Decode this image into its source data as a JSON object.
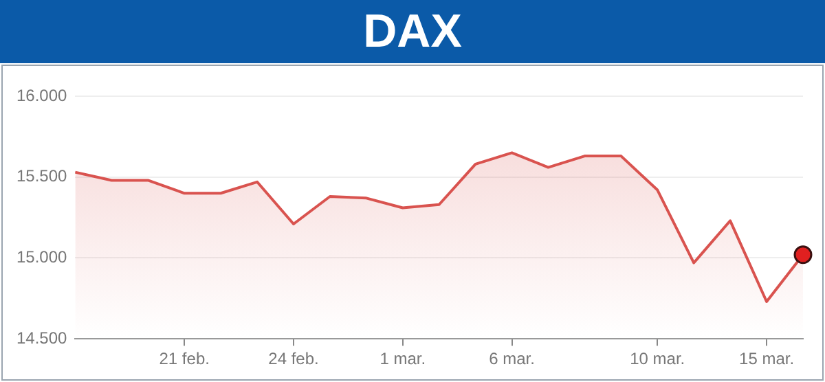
{
  "chart_data": {
    "type": "area",
    "title": "DAX",
    "categories": [
      null,
      null,
      null,
      "21 feb.",
      null,
      null,
      "24 feb.",
      null,
      null,
      "1 mar.",
      null,
      null,
      "6 mar.",
      null,
      null,
      null,
      "10 mar.",
      null,
      null,
      "15 mar.",
      null
    ],
    "series": [
      {
        "color": "#d9534f",
        "values": [
          15530,
          15480,
          15480,
          15400,
          15400,
          15470,
          15210,
          15380,
          15370,
          15310,
          15330,
          15580,
          15650,
          15560,
          15630,
          15630,
          15420,
          14970,
          15230,
          14730,
          15020
        ]
      }
    ],
    "ylim": [
      14500,
      16000
    ],
    "yticks": [
      {
        "value": 14500,
        "label": "14.500"
      },
      {
        "value": 15000,
        "label": "15.000"
      },
      {
        "value": 15500,
        "label": "15.500"
      },
      {
        "value": 16000,
        "label": "16.000"
      }
    ],
    "grid": "y",
    "legend": false
  }
}
